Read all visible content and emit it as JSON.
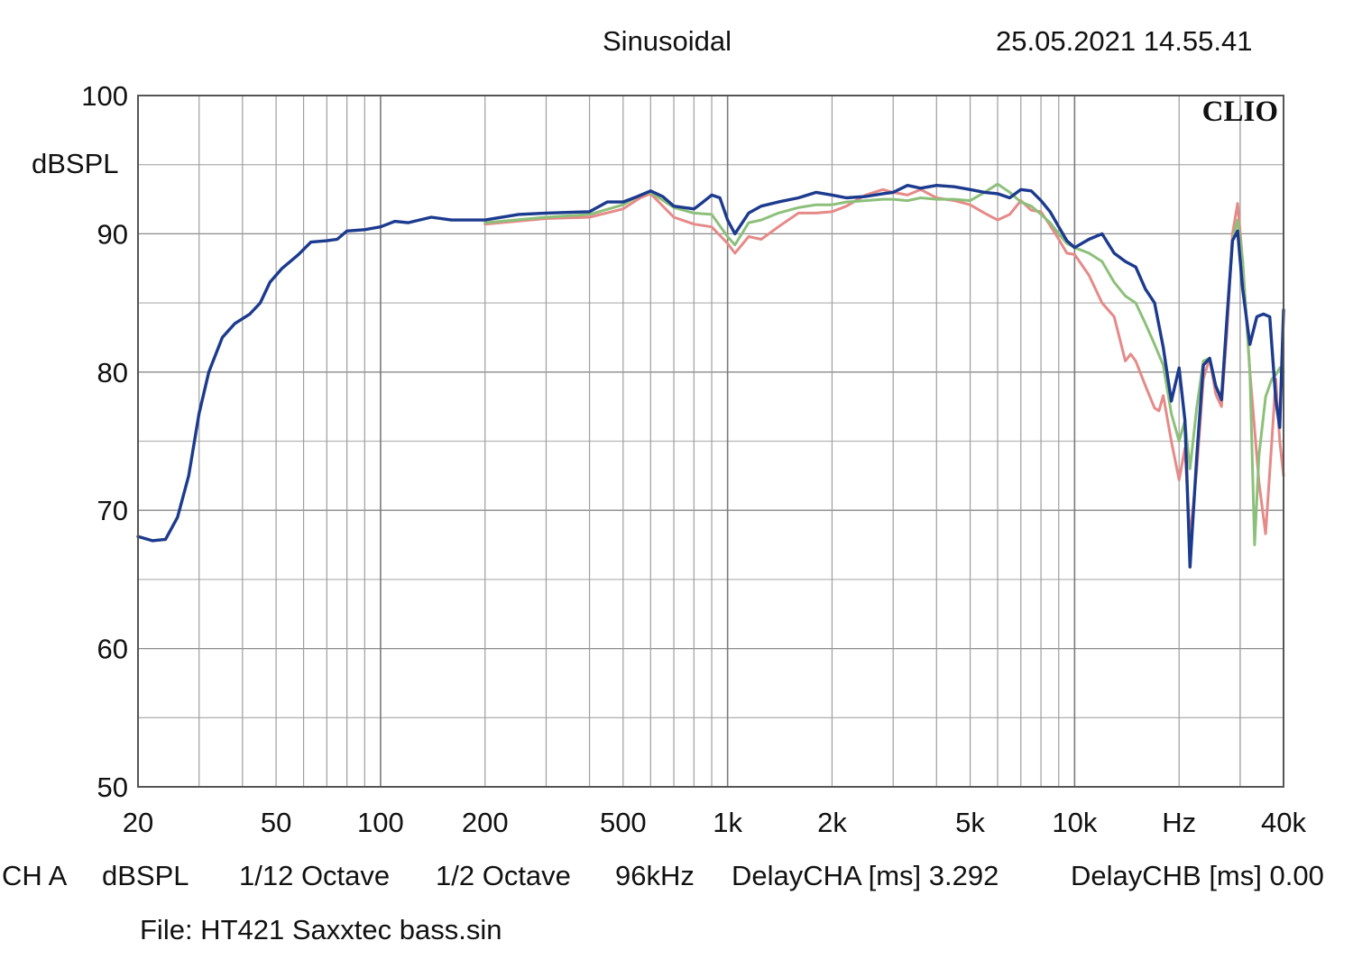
{
  "header": {
    "mode": "Sinusoidal",
    "timestamp": "25.05.2021 14.55.41"
  },
  "chart_data": {
    "type": "line",
    "title": "Sinusoidal",
    "ylabel": "dBSPL",
    "xlabel": "Hz",
    "xscale": "log",
    "xlim": [
      20,
      40000
    ],
    "ylim": [
      50,
      100
    ],
    "brand": "CLIO",
    "y_ticks": [
      {
        "value": 100,
        "label": "100"
      },
      {
        "value": 90,
        "label": "90"
      },
      {
        "value": 80,
        "label": "80"
      },
      {
        "value": 70,
        "label": "70"
      },
      {
        "value": 60,
        "label": "60"
      },
      {
        "value": 50,
        "label": "50"
      }
    ],
    "x_ticks": [
      {
        "value": 20,
        "label": "20"
      },
      {
        "value": 50,
        "label": "50"
      },
      {
        "value": 100,
        "label": "100"
      },
      {
        "value": 200,
        "label": "200"
      },
      {
        "value": 500,
        "label": "500"
      },
      {
        "value": 1000,
        "label": "1k"
      },
      {
        "value": 2000,
        "label": "2k"
      },
      {
        "value": 5000,
        "label": "5k"
      },
      {
        "value": 10000,
        "label": "10k"
      },
      {
        "value": 20000,
        "label": "Hz"
      },
      {
        "value": 40000,
        "label": "40k"
      }
    ],
    "series": [
      {
        "name": "red",
        "color": "#e58a88",
        "points": [
          [
            200,
            90.7
          ],
          [
            300,
            91.1
          ],
          [
            400,
            91.2
          ],
          [
            500,
            91.8
          ],
          [
            560,
            92.6
          ],
          [
            600,
            92.9
          ],
          [
            700,
            91.2
          ],
          [
            800,
            90.7
          ],
          [
            900,
            90.5
          ],
          [
            1000,
            89.3
          ],
          [
            1050,
            88.6
          ],
          [
            1150,
            89.8
          ],
          [
            1250,
            89.6
          ],
          [
            1400,
            90.5
          ],
          [
            1600,
            91.5
          ],
          [
            1800,
            91.5
          ],
          [
            2000,
            91.6
          ],
          [
            2200,
            92.0
          ],
          [
            2500,
            92.8
          ],
          [
            2800,
            93.2
          ],
          [
            3000,
            93.0
          ],
          [
            3300,
            92.8
          ],
          [
            3600,
            93.2
          ],
          [
            4000,
            92.6
          ],
          [
            4500,
            92.4
          ],
          [
            5000,
            92.1
          ],
          [
            5500,
            91.5
          ],
          [
            6000,
            91.0
          ],
          [
            6500,
            91.4
          ],
          [
            7000,
            92.4
          ],
          [
            7500,
            91.7
          ],
          [
            8000,
            91.6
          ],
          [
            8500,
            90.6
          ],
          [
            9000,
            89.6
          ],
          [
            9500,
            88.6
          ],
          [
            10000,
            88.5
          ],
          [
            11000,
            87.0
          ],
          [
            12000,
            85.0
          ],
          [
            13000,
            84.0
          ],
          [
            14000,
            80.8
          ],
          [
            14500,
            81.3
          ],
          [
            15000,
            80.8
          ],
          [
            16000,
            79.0
          ],
          [
            17000,
            77.4
          ],
          [
            17500,
            77.2
          ],
          [
            18000,
            78.3
          ],
          [
            19000,
            75.0
          ],
          [
            20000,
            72.2
          ],
          [
            20800,
            74.5
          ],
          [
            21500,
            68.0
          ],
          [
            22500,
            73.0
          ],
          [
            23500,
            79.5
          ],
          [
            24500,
            81.0
          ],
          [
            25500,
            78.4
          ],
          [
            26500,
            77.5
          ],
          [
            27500,
            83.0
          ],
          [
            28500,
            90.0
          ],
          [
            29500,
            92.2
          ],
          [
            30500,
            88.0
          ],
          [
            32000,
            80.0
          ],
          [
            34000,
            72.0
          ],
          [
            35500,
            68.3
          ],
          [
            37000,
            75.0
          ],
          [
            38000,
            79.5
          ],
          [
            39000,
            75.0
          ],
          [
            40000,
            72.5
          ]
        ]
      },
      {
        "name": "green",
        "color": "#8cc07a",
        "points": [
          [
            200,
            90.8
          ],
          [
            300,
            91.2
          ],
          [
            400,
            91.4
          ],
          [
            500,
            92.1
          ],
          [
            560,
            92.8
          ],
          [
            600,
            93.0
          ],
          [
            700,
            91.9
          ],
          [
            800,
            91.5
          ],
          [
            900,
            91.4
          ],
          [
            1000,
            89.8
          ],
          [
            1050,
            89.2
          ],
          [
            1150,
            90.8
          ],
          [
            1250,
            91.0
          ],
          [
            1400,
            91.5
          ],
          [
            1600,
            91.9
          ],
          [
            1800,
            92.1
          ],
          [
            2000,
            92.1
          ],
          [
            2200,
            92.3
          ],
          [
            2500,
            92.4
          ],
          [
            2800,
            92.5
          ],
          [
            3000,
            92.5
          ],
          [
            3300,
            92.4
          ],
          [
            3600,
            92.6
          ],
          [
            4000,
            92.5
          ],
          [
            4500,
            92.5
          ],
          [
            5000,
            92.4
          ],
          [
            5500,
            93.0
          ],
          [
            6000,
            93.6
          ],
          [
            6500,
            93.0
          ],
          [
            7000,
            92.3
          ],
          [
            7500,
            92.0
          ],
          [
            8000,
            91.4
          ],
          [
            8500,
            90.8
          ],
          [
            9000,
            90.0
          ],
          [
            9500,
            89.3
          ],
          [
            10000,
            89.0
          ],
          [
            11000,
            88.6
          ],
          [
            12000,
            88.0
          ],
          [
            13000,
            86.5
          ],
          [
            14000,
            85.5
          ],
          [
            15000,
            85.0
          ],
          [
            16000,
            83.5
          ],
          [
            17000,
            82.0
          ],
          [
            18000,
            80.5
          ],
          [
            19000,
            77.0
          ],
          [
            20000,
            75.0
          ],
          [
            20800,
            76.5
          ],
          [
            21500,
            73.0
          ],
          [
            22500,
            77.5
          ],
          [
            23500,
            80.8
          ],
          [
            24500,
            81.0
          ],
          [
            25500,
            79.0
          ],
          [
            26500,
            78.2
          ],
          [
            27500,
            84.0
          ],
          [
            28500,
            89.5
          ],
          [
            29500,
            91.0
          ],
          [
            30500,
            88.0
          ],
          [
            32000,
            80.0
          ],
          [
            33000,
            67.5
          ],
          [
            34000,
            74.0
          ],
          [
            35500,
            78.2
          ],
          [
            37000,
            79.5
          ],
          [
            38000,
            79.8
          ],
          [
            39000,
            80.3
          ],
          [
            40000,
            80.0
          ]
        ]
      },
      {
        "name": "blue",
        "color": "#1c3a8e",
        "points": [
          [
            20,
            68.1
          ],
          [
            22,
            67.8
          ],
          [
            24,
            67.9
          ],
          [
            26,
            69.5
          ],
          [
            28,
            72.5
          ],
          [
            30,
            77.0
          ],
          [
            32,
            80.0
          ],
          [
            35,
            82.5
          ],
          [
            38,
            83.5
          ],
          [
            42,
            84.2
          ],
          [
            45,
            85.0
          ],
          [
            48,
            86.5
          ],
          [
            52,
            87.5
          ],
          [
            58,
            88.5
          ],
          [
            63,
            89.4
          ],
          [
            70,
            89.5
          ],
          [
            75,
            89.6
          ],
          [
            80,
            90.2
          ],
          [
            90,
            90.3
          ],
          [
            100,
            90.5
          ],
          [
            110,
            90.9
          ],
          [
            120,
            90.8
          ],
          [
            140,
            91.2
          ],
          [
            160,
            91.0
          ],
          [
            200,
            91.0
          ],
          [
            250,
            91.4
          ],
          [
            300,
            91.5
          ],
          [
            400,
            91.6
          ],
          [
            450,
            92.3
          ],
          [
            500,
            92.3
          ],
          [
            550,
            92.7
          ],
          [
            600,
            93.1
          ],
          [
            650,
            92.7
          ],
          [
            700,
            92.0
          ],
          [
            800,
            91.8
          ],
          [
            850,
            92.3
          ],
          [
            900,
            92.8
          ],
          [
            950,
            92.6
          ],
          [
            1000,
            91.0
          ],
          [
            1050,
            90.0
          ],
          [
            1150,
            91.5
          ],
          [
            1250,
            92.0
          ],
          [
            1400,
            92.3
          ],
          [
            1600,
            92.6
          ],
          [
            1800,
            93.0
          ],
          [
            2000,
            92.8
          ],
          [
            2200,
            92.6
          ],
          [
            2500,
            92.7
          ],
          [
            2800,
            92.9
          ],
          [
            3000,
            93.0
          ],
          [
            3300,
            93.5
          ],
          [
            3600,
            93.3
          ],
          [
            4000,
            93.5
          ],
          [
            4500,
            93.4
          ],
          [
            5000,
            93.2
          ],
          [
            5500,
            93.0
          ],
          [
            6000,
            92.9
          ],
          [
            6500,
            92.6
          ],
          [
            7000,
            93.2
          ],
          [
            7500,
            93.1
          ],
          [
            8000,
            92.4
          ],
          [
            8500,
            91.6
          ],
          [
            9000,
            90.5
          ],
          [
            9500,
            89.5
          ],
          [
            10000,
            89.0
          ],
          [
            11000,
            89.6
          ],
          [
            12000,
            90.0
          ],
          [
            13000,
            88.6
          ],
          [
            14000,
            88.0
          ],
          [
            15000,
            87.6
          ],
          [
            16000,
            86.0
          ],
          [
            17000,
            85.0
          ],
          [
            18000,
            81.8
          ],
          [
            19000,
            77.9
          ],
          [
            20000,
            80.3
          ],
          [
            20800,
            76.5
          ],
          [
            21500,
            65.9
          ],
          [
            22500,
            74.0
          ],
          [
            23500,
            80.5
          ],
          [
            24500,
            81.0
          ],
          [
            25500,
            79.0
          ],
          [
            26500,
            78.0
          ],
          [
            27500,
            84.0
          ],
          [
            28500,
            89.5
          ],
          [
            29500,
            90.2
          ],
          [
            30500,
            86.0
          ],
          [
            32000,
            82.0
          ],
          [
            33500,
            84.0
          ],
          [
            35000,
            84.2
          ],
          [
            36500,
            84.0
          ],
          [
            38000,
            78.0
          ],
          [
            39000,
            76.0
          ],
          [
            40000,
            84.5
          ]
        ]
      }
    ]
  },
  "footer": {
    "line1": [
      "CH A",
      "dBSPL",
      "1/12 Octave",
      "1/2 Octave",
      "96kHz",
      "DelayCHA [ms] 3.292",
      "DelayCHB [ms] 0.00"
    ],
    "file": "File: HT421 Saxxtec bass.sin"
  }
}
